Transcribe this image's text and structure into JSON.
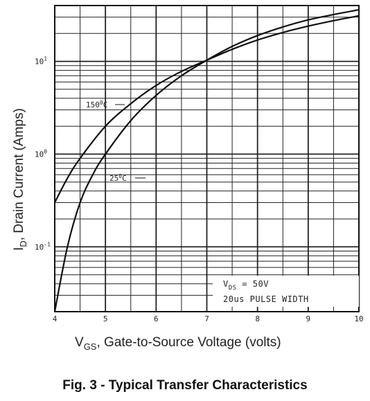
{
  "caption": "Fig. 3 - Typical Transfer Characteristics",
  "chart_data": {
    "type": "line",
    "title": "Fig. 3 - Typical Transfer Characteristics",
    "xlabel": "VGS, Gate-to-Source Voltage (volts)",
    "xlabel_main": "V",
    "xlabel_sub": "GS",
    "xlabel_rest": ", Gate-to-Source Voltage (volts)",
    "ylabel": "ID, Drain Current (Amps)",
    "ylabel_main": "I",
    "ylabel_sub": "D",
    "ylabel_rest": ", Drain Current (Amps)",
    "xlim": [
      4,
      10
    ],
    "ylim": [
      0.02,
      40
    ],
    "y_scale": "log",
    "grid": true,
    "x_ticks": [
      4,
      5,
      6,
      7,
      8,
      9,
      10
    ],
    "y_ticks": [
      {
        "value": 0.1,
        "base": "10",
        "exp": "-1"
      },
      {
        "value": 1,
        "base": "10",
        "exp": "0"
      },
      {
        "value": 10,
        "base": "10",
        "exp": "1"
      }
    ],
    "series": [
      {
        "name": "150°C",
        "label_main": "150",
        "label_sup": "0",
        "label_unit": "C",
        "x": [
          4.0,
          4.25,
          4.5,
          5.0,
          5.5,
          6.0,
          6.5,
          7.0,
          7.5,
          8.0,
          8.5,
          9.0,
          9.5,
          10.0
        ],
        "y": [
          0.3,
          0.55,
          0.9,
          2.0,
          3.5,
          5.5,
          7.8,
          10.3,
          13.5,
          17.0,
          20.5,
          24.0,
          27.5,
          31.0
        ]
      },
      {
        "name": "25°C",
        "label_main": "25",
        "label_sup": "0",
        "label_unit": "C",
        "x": [
          4.0,
          4.25,
          4.5,
          4.75,
          5.0,
          5.5,
          6.0,
          6.5,
          7.0,
          7.5,
          8.0,
          8.5,
          9.0,
          9.5,
          10.0
        ],
        "y": [
          0.02,
          0.1,
          0.3,
          0.6,
          1.0,
          2.3,
          4.3,
          7.0,
          10.3,
          14.5,
          19.0,
          23.5,
          28.0,
          32.0,
          36.0
        ]
      }
    ],
    "annotation_lines": [
      {
        "main": "V",
        "sub": "DS",
        "rest": " = 50V"
      },
      {
        "main": "20us PULSE WIDTH",
        "sub": "",
        "rest": ""
      }
    ]
  }
}
